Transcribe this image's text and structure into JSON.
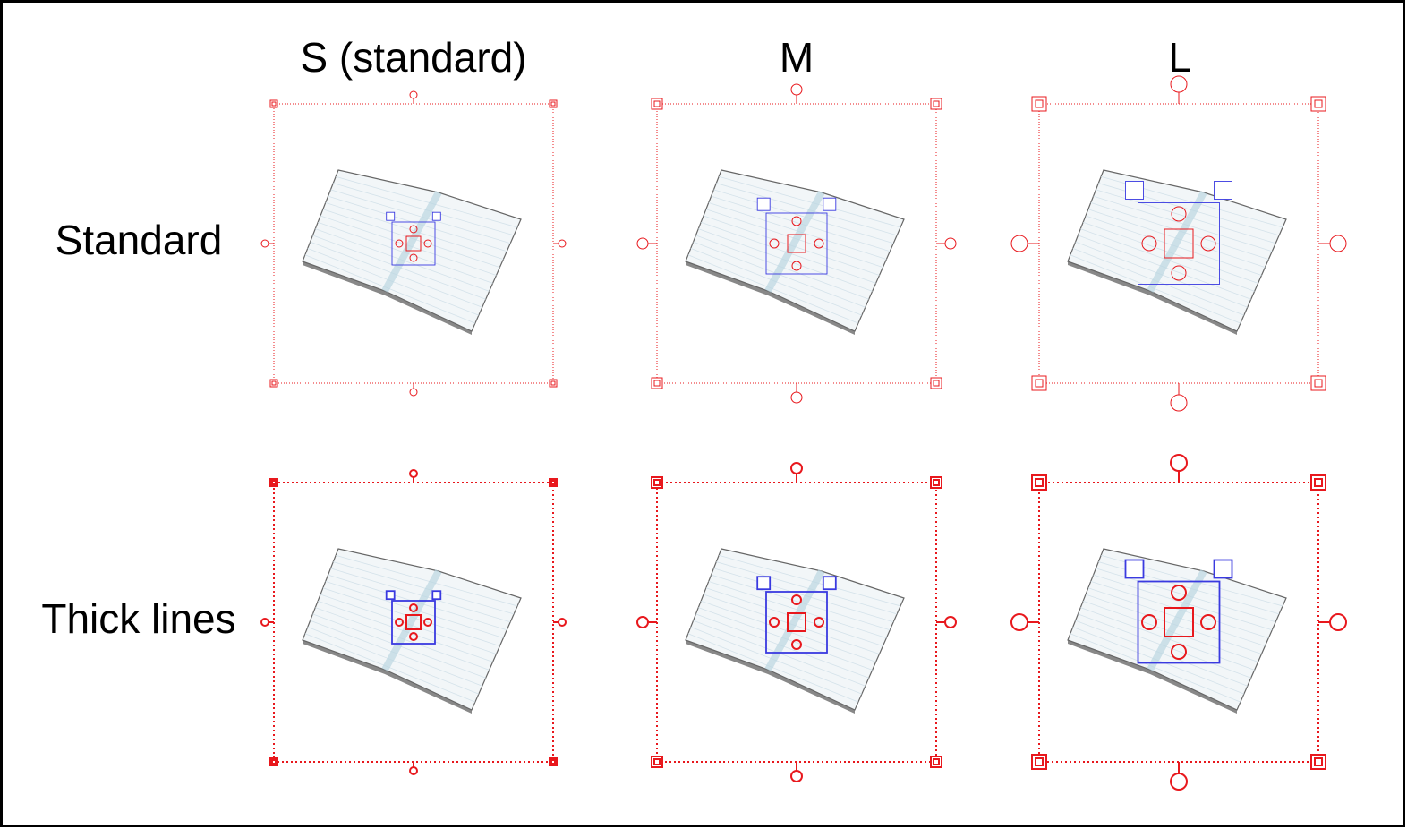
{
  "columns": [
    "S (standard)",
    "M",
    "L"
  ],
  "rows": [
    "Standard",
    "Thick lines"
  ]
}
